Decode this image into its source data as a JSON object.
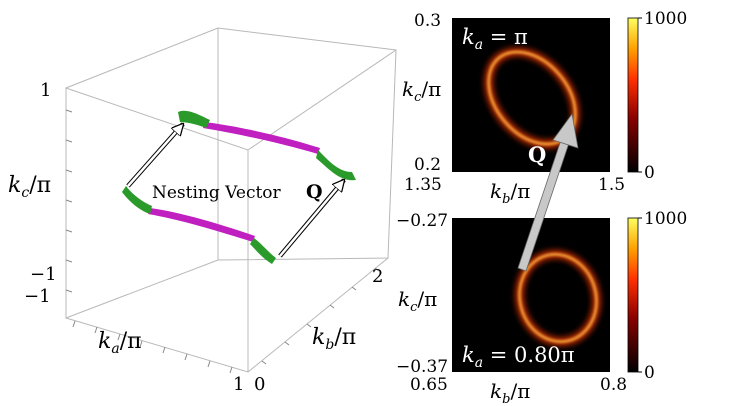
{
  "box3d": {
    "ticks": {
      "kc_top": "1",
      "kc_bottom": "−1",
      "ka_left": "−1",
      "ka_right": "1",
      "kb_left": "0",
      "kb_right": "2"
    },
    "axis_labels": {
      "kc": "k",
      "kc_sub": "c",
      "ka": "k",
      "ka_sub": "a",
      "kb": "k",
      "kb_sub": "b",
      "over_pi": "/π"
    },
    "annotation": "Nesting Vector",
    "vector_symbol": "Q"
  },
  "panel_top": {
    "label_k": "k",
    "label_sub": "a",
    "label_eq": " = π",
    "y_top": "0.3",
    "y_bottom": "0.2",
    "x_left": "1.35",
    "x_right": "1.5",
    "colorbar_max": "1000",
    "colorbar_min": "0"
  },
  "panel_bottom": {
    "label_k": "k",
    "label_sub": "a",
    "label_eq": " = 0.80π",
    "y_top": "−0.27",
    "y_bottom": "−0.37",
    "x_left": "0.65",
    "x_right": "0.8",
    "colorbar_max": "1000",
    "colorbar_min": "0"
  },
  "between_panels": {
    "vector_symbol": "Q"
  },
  "colors": {
    "magenta": "#c020c0",
    "green": "#2a9a2a",
    "heatmap_bg": "#000000",
    "ring": "#ff6a00"
  }
}
